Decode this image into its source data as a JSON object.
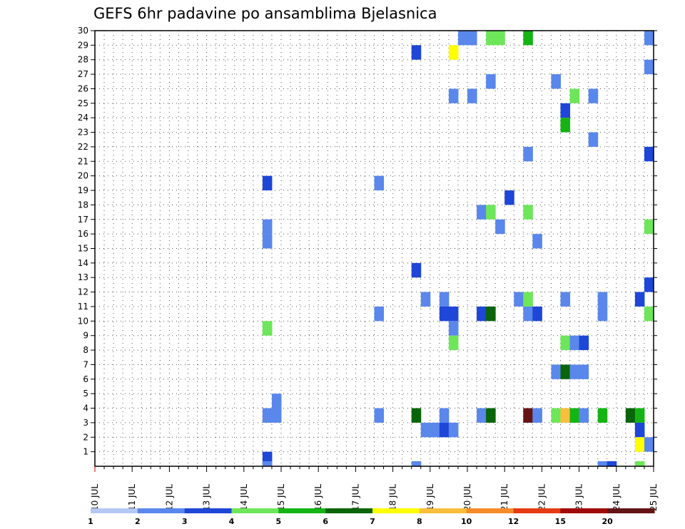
{
  "chart_data": {
    "type": "heatmap",
    "title": "GEFS 6hr padavine po ansamblima Bjelasnica",
    "x_ticks": [
      "10 JUL",
      "11 JUL",
      "12 JUL",
      "13 JUL",
      "14 JUL",
      "15 JUL",
      "16 JUL",
      "17 JUL",
      "18 JUL",
      "19 JUL",
      "20 JUL",
      "21 JUL",
      "22 JUL",
      "23 JUL",
      "24 JUL",
      "25 JUL"
    ],
    "y_ticks": [
      "1",
      "2",
      "3",
      "4",
      "5",
      "6",
      "7",
      "8",
      "9",
      "10",
      "11",
      "12",
      "13",
      "14",
      "15",
      "16",
      "17",
      "18",
      "19",
      "20",
      "21",
      "22",
      "23",
      "24",
      "25",
      "26",
      "27",
      "28",
      "29",
      "30"
    ],
    "xlim": [
      "10 JUL 00Z",
      "25 JUL 00Z"
    ],
    "ylim": [
      0,
      30
    ],
    "grid": true,
    "cell_width": "6h",
    "cells_note": "x in days since 10 JUL 00Z (cell start), y = ensemble member row top, v = 6hr precipitation class upper value",
    "cells": [
      {
        "x": 9.75,
        "y": 30,
        "v": 2
      },
      {
        "x": 10.0,
        "y": 30,
        "v": 2
      },
      {
        "x": 10.5,
        "y": 30,
        "v": 4
      },
      {
        "x": 10.75,
        "y": 30,
        "v": 4
      },
      {
        "x": 11.5,
        "y": 30,
        "v": 5
      },
      {
        "x": 14.75,
        "y": 30,
        "v": 2
      },
      {
        "x": 8.5,
        "y": 29,
        "v": 3
      },
      {
        "x": 9.5,
        "y": 29,
        "v": 7
      },
      {
        "x": 14.75,
        "y": 28,
        "v": 2
      },
      {
        "x": 10.5,
        "y": 27,
        "v": 2
      },
      {
        "x": 12.25,
        "y": 27,
        "v": 2
      },
      {
        "x": 9.5,
        "y": 26,
        "v": 2
      },
      {
        "x": 10.0,
        "y": 26,
        "v": 2
      },
      {
        "x": 12.75,
        "y": 26,
        "v": 4
      },
      {
        "x": 13.25,
        "y": 26,
        "v": 2
      },
      {
        "x": 12.5,
        "y": 25,
        "v": 3
      },
      {
        "x": 12.5,
        "y": 24,
        "v": 5
      },
      {
        "x": 13.25,
        "y": 23,
        "v": 2
      },
      {
        "x": 11.5,
        "y": 22,
        "v": 2
      },
      {
        "x": 14.75,
        "y": 22,
        "v": 3
      },
      {
        "x": 4.5,
        "y": 20,
        "v": 3
      },
      {
        "x": 7.5,
        "y": 20,
        "v": 2
      },
      {
        "x": 11.0,
        "y": 19,
        "v": 3
      },
      {
        "x": 10.25,
        "y": 18,
        "v": 2
      },
      {
        "x": 10.5,
        "y": 18,
        "v": 4
      },
      {
        "x": 11.5,
        "y": 18,
        "v": 4
      },
      {
        "x": 4.5,
        "y": 17,
        "v": 2
      },
      {
        "x": 10.75,
        "y": 17,
        "v": 2
      },
      {
        "x": 14.75,
        "y": 17,
        "v": 4
      },
      {
        "x": 4.5,
        "y": 16,
        "v": 2
      },
      {
        "x": 11.75,
        "y": 16,
        "v": 2
      },
      {
        "x": 8.5,
        "y": 14,
        "v": 3
      },
      {
        "x": 14.75,
        "y": 13,
        "v": 3
      },
      {
        "x": 8.75,
        "y": 12,
        "v": 2
      },
      {
        "x": 9.25,
        "y": 12,
        "v": 2
      },
      {
        "x": 11.25,
        "y": 12,
        "v": 2
      },
      {
        "x": 11.5,
        "y": 12,
        "v": 4
      },
      {
        "x": 12.5,
        "y": 12,
        "v": 2
      },
      {
        "x": 13.5,
        "y": 12,
        "v": 2
      },
      {
        "x": 14.5,
        "y": 12,
        "v": 3
      },
      {
        "x": 7.5,
        "y": 11,
        "v": 2
      },
      {
        "x": 9.25,
        "y": 11,
        "v": 3
      },
      {
        "x": 9.5,
        "y": 11,
        "v": 3
      },
      {
        "x": 10.25,
        "y": 11,
        "v": 3
      },
      {
        "x": 10.5,
        "y": 11,
        "v": 6
      },
      {
        "x": 11.5,
        "y": 11,
        "v": 2
      },
      {
        "x": 11.75,
        "y": 11,
        "v": 3
      },
      {
        "x": 13.5,
        "y": 11,
        "v": 2
      },
      {
        "x": 14.75,
        "y": 11,
        "v": 4
      },
      {
        "x": 4.5,
        "y": 10,
        "v": 4
      },
      {
        "x": 9.5,
        "y": 10,
        "v": 2
      },
      {
        "x": 9.5,
        "y": 9,
        "v": 4
      },
      {
        "x": 12.5,
        "y": 9,
        "v": 4
      },
      {
        "x": 12.75,
        "y": 9,
        "v": 2
      },
      {
        "x": 13.0,
        "y": 9,
        "v": 3
      },
      {
        "x": 12.25,
        "y": 7,
        "v": 2
      },
      {
        "x": 12.5,
        "y": 7,
        "v": 6
      },
      {
        "x": 12.75,
        "y": 7,
        "v": 2
      },
      {
        "x": 13.0,
        "y": 7,
        "v": 2
      },
      {
        "x": 4.75,
        "y": 5,
        "v": 2
      },
      {
        "x": 4.5,
        "y": 4,
        "v": 2
      },
      {
        "x": 4.75,
        "y": 4,
        "v": 2
      },
      {
        "x": 7.5,
        "y": 4,
        "v": 2
      },
      {
        "x": 8.5,
        "y": 4,
        "v": 6
      },
      {
        "x": 9.25,
        "y": 4,
        "v": 2
      },
      {
        "x": 10.25,
        "y": 4,
        "v": 2
      },
      {
        "x": 10.5,
        "y": 4,
        "v": 6
      },
      {
        "x": 11.5,
        "y": 4,
        "v": 20
      },
      {
        "x": 11.75,
        "y": 4,
        "v": 2
      },
      {
        "x": 12.25,
        "y": 4,
        "v": 4
      },
      {
        "x": 12.5,
        "y": 4,
        "v": 8
      },
      {
        "x": 12.75,
        "y": 4,
        "v": 5
      },
      {
        "x": 13.0,
        "y": 4,
        "v": 2
      },
      {
        "x": 13.5,
        "y": 4,
        "v": 5
      },
      {
        "x": 14.25,
        "y": 4,
        "v": 6
      },
      {
        "x": 14.5,
        "y": 4,
        "v": 5
      },
      {
        "x": 8.75,
        "y": 3,
        "v": 2
      },
      {
        "x": 9.0,
        "y": 3,
        "v": 2
      },
      {
        "x": 9.25,
        "y": 3,
        "v": 3
      },
      {
        "x": 9.5,
        "y": 3,
        "v": 2
      },
      {
        "x": 14.5,
        "y": 3,
        "v": 3
      },
      {
        "x": 14.5,
        "y": 2,
        "v": 7
      },
      {
        "x": 14.75,
        "y": 2,
        "v": 2
      },
      {
        "x": 4.5,
        "y": 1,
        "v": 3
      },
      {
        "x": 4.5,
        "y": 0.35,
        "v": 2
      },
      {
        "x": 8.5,
        "y": 0.35,
        "v": 2
      },
      {
        "x": 13.5,
        "y": 0.35,
        "v": 2
      },
      {
        "x": 13.75,
        "y": 0.35,
        "v": 3
      },
      {
        "x": 14.5,
        "y": 0.35,
        "v": 4
      }
    ],
    "color_scale": {
      "labels": [
        "1",
        "2",
        "3",
        "4",
        "5",
        "6",
        "7",
        "8",
        "10",
        "12",
        "15",
        "20"
      ],
      "colors": [
        "#b4c8f5",
        "#5a87eb",
        "#1e46d7",
        "#6ee65a",
        "#14b414",
        "#0a640a",
        "#ffff00",
        "#fabe3c",
        "#f58c28",
        "#e63c14",
        "#a00a0a",
        "#641414"
      ]
    }
  }
}
